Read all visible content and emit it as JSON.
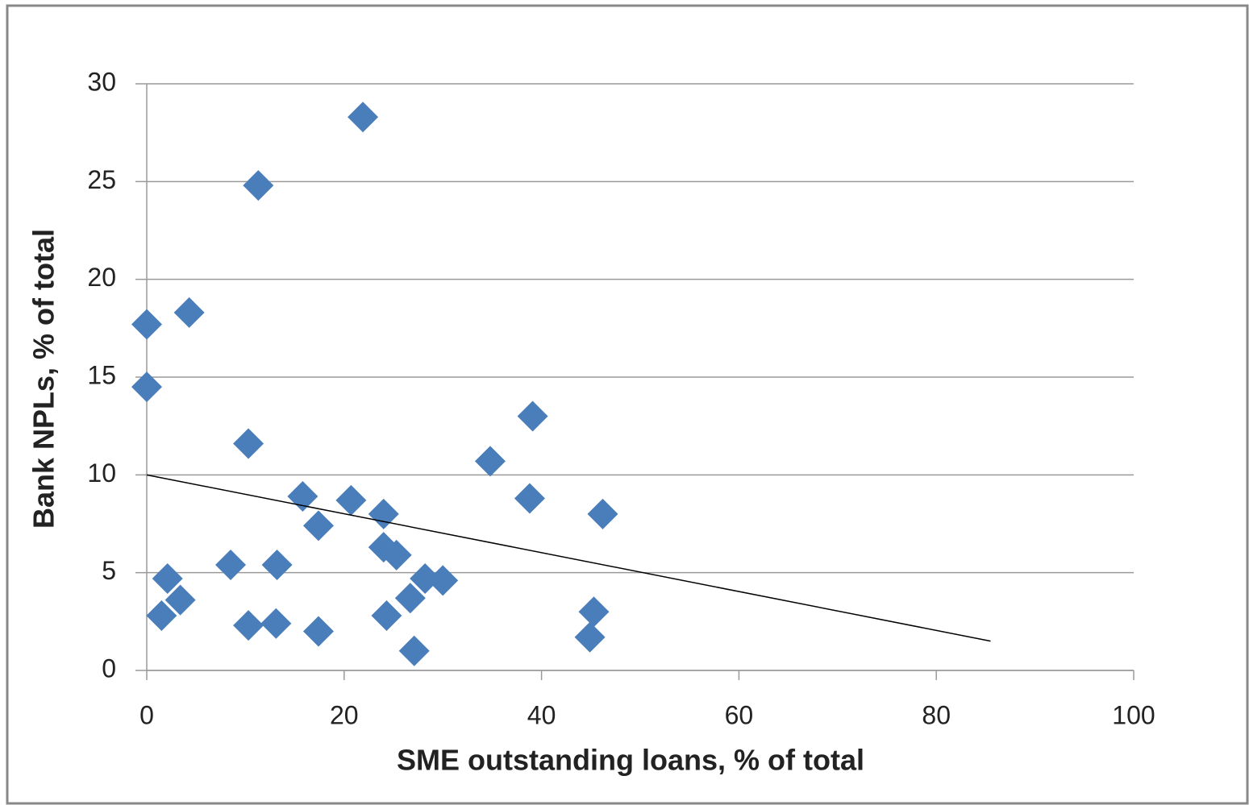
{
  "chart_data": {
    "type": "scatter",
    "x_label": "SME outstanding loans, % of total",
    "y_label": "Bank NPLs, % of total",
    "series": [
      {
        "color": "#4a7ebb",
        "x": [
          21.9,
          11.3,
          4.3,
          0,
          0,
          10.3,
          39.1,
          34.8,
          38.8,
          46.2,
          15.8,
          20.7,
          24.0,
          17.4,
          24.0,
          25.3,
          8.5,
          13.2,
          2.1,
          28.2,
          30.0,
          3.4,
          26.7,
          1.5,
          24.3,
          10.3,
          13.1,
          17.4,
          45.3,
          44.9,
          27.1
        ],
        "values": [
          28.3,
          24.8,
          18.3,
          17.7,
          14.5,
          11.6,
          13.0,
          10.7,
          8.8,
          8.0,
          8.9,
          8.7,
          8.0,
          7.4,
          6.3,
          5.9,
          5.4,
          5.4,
          4.7,
          4.7,
          4.6,
          3.6,
          3.7,
          2.8,
          2.8,
          2.3,
          2.4,
          2.0,
          3.0,
          1.7,
          1.0
        ]
      }
    ],
    "trendline": {
      "color": "#000000",
      "x": [
        0,
        85.5
      ],
      "y": [
        10,
        1.5
      ]
    },
    "xlim": [
      0,
      100
    ],
    "xticks": [
      0,
      20,
      40,
      60,
      80,
      100
    ],
    "ylim": [
      0,
      30
    ],
    "yticks": [
      0,
      5,
      10,
      15,
      20,
      25,
      30
    ],
    "grid": true
  }
}
